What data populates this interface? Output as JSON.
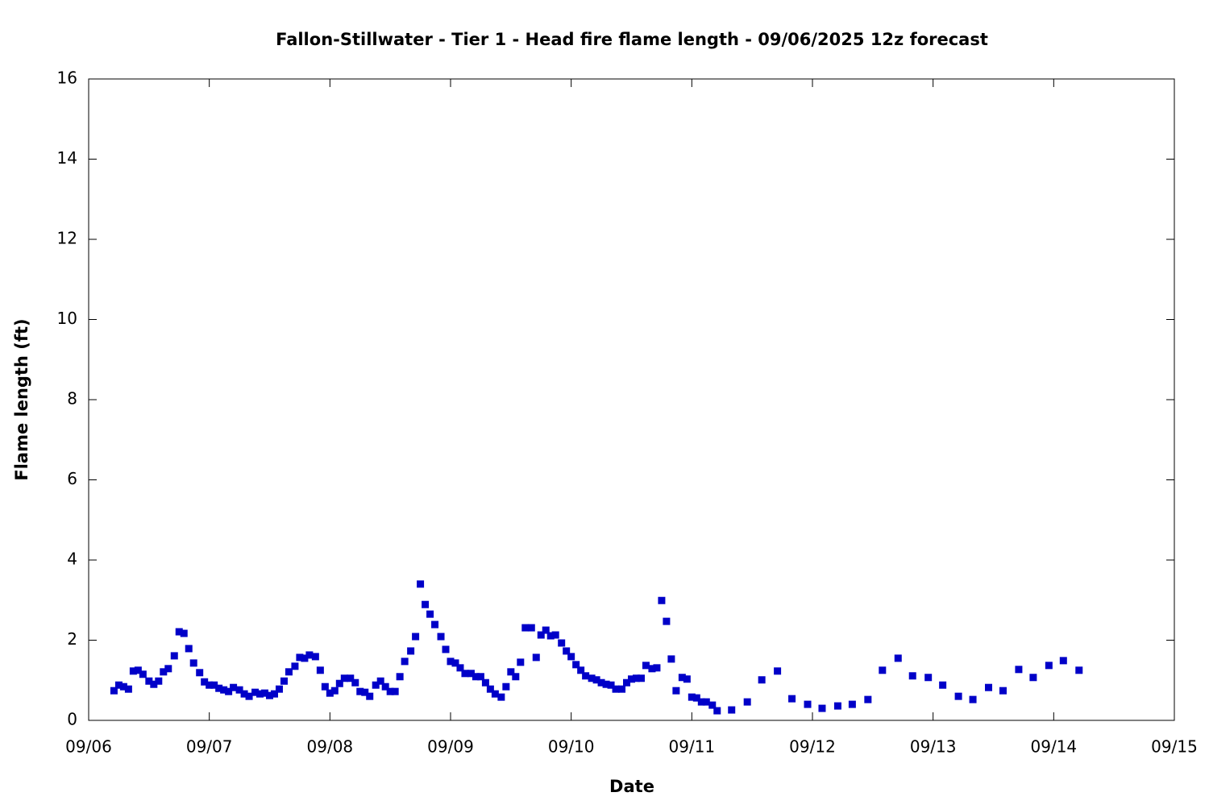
{
  "chart_data": {
    "type": "scatter",
    "title": "Fallon-Stillwater - Tier 1 - Head fire flame length - 09/06/2025 12z forecast",
    "x_label": "Date",
    "y_label": "Flame length (ft)",
    "color": "#0000c8",
    "xlim": [
      0,
      9
    ],
    "xticks": [
      {
        "value": 0,
        "label": "09/06"
      },
      {
        "value": 1,
        "label": "09/07"
      },
      {
        "value": 2,
        "label": "09/08"
      },
      {
        "value": 3,
        "label": "09/09"
      },
      {
        "value": 4,
        "label": "09/10"
      },
      {
        "value": 5,
        "label": "09/11"
      },
      {
        "value": 6,
        "label": "09/12"
      },
      {
        "value": 7,
        "label": "09/13"
      },
      {
        "value": 8,
        "label": "09/14"
      },
      {
        "value": 9,
        "label": "09/15"
      }
    ],
    "ylim": [
      0,
      16
    ],
    "yticks": [
      0,
      2,
      4,
      6,
      8,
      10,
      12,
      14,
      16
    ],
    "x": [
      0.21,
      0.25,
      0.29,
      0.33,
      0.37,
      0.41,
      0.45,
      0.5,
      0.54,
      0.58,
      0.62,
      0.66,
      0.71,
      0.75,
      0.79,
      0.83,
      0.87,
      0.92,
      0.96,
      1.0,
      1.04,
      1.08,
      1.12,
      1.16,
      1.2,
      1.25,
      1.29,
      1.33,
      1.38,
      1.42,
      1.46,
      1.5,
      1.54,
      1.58,
      1.62,
      1.66,
      1.71,
      1.75,
      1.79,
      1.83,
      1.88,
      1.92,
      1.96,
      2.0,
      2.04,
      2.08,
      2.12,
      2.17,
      2.21,
      2.25,
      2.29,
      2.33,
      2.38,
      2.42,
      2.46,
      2.5,
      2.54,
      2.58,
      2.62,
      2.67,
      2.71,
      2.75,
      2.79,
      2.83,
      2.87,
      2.92,
      2.96,
      3.0,
      3.04,
      3.08,
      3.12,
      3.17,
      3.21,
      3.25,
      3.29,
      3.33,
      3.37,
      3.42,
      3.46,
      3.5,
      3.54,
      3.58,
      3.62,
      3.67,
      3.71,
      3.75,
      3.79,
      3.83,
      3.87,
      3.92,
      3.96,
      4.0,
      4.04,
      4.08,
      4.12,
      4.17,
      4.21,
      4.25,
      4.29,
      4.33,
      4.37,
      4.42,
      4.46,
      4.5,
      4.54,
      4.58,
      4.62,
      4.67,
      4.71,
      4.75,
      4.79,
      4.83,
      4.87,
      4.92,
      4.96,
      5.0,
      5.04,
      5.08,
      5.12,
      5.17,
      5.21,
      5.33,
      5.46,
      5.58,
      5.71,
      5.83,
      5.96,
      6.08,
      6.21,
      6.33,
      6.46,
      6.58,
      6.71,
      6.83,
      6.96,
      7.08,
      7.21,
      7.33,
      7.46,
      7.58,
      7.71,
      7.83,
      7.96,
      8.08,
      8.21
    ],
    "y": [
      0.74,
      0.88,
      0.84,
      0.78,
      1.23,
      1.25,
      1.15,
      0.98,
      0.9,
      0.98,
      1.21,
      1.29,
      1.61,
      2.21,
      2.17,
      1.79,
      1.43,
      1.19,
      0.96,
      0.88,
      0.88,
      0.8,
      0.76,
      0.72,
      0.82,
      0.76,
      0.66,
      0.6,
      0.7,
      0.66,
      0.68,
      0.62,
      0.66,
      0.78,
      0.98,
      1.21,
      1.35,
      1.57,
      1.55,
      1.63,
      1.59,
      1.25,
      0.84,
      0.68,
      0.74,
      0.92,
      1.05,
      1.05,
      0.94,
      0.72,
      0.7,
      0.6,
      0.88,
      0.98,
      0.84,
      0.72,
      0.72,
      1.09,
      1.47,
      1.73,
      2.09,
      3.4,
      2.89,
      2.65,
      2.39,
      2.09,
      1.77,
      1.47,
      1.43,
      1.31,
      1.17,
      1.17,
      1.09,
      1.09,
      0.94,
      0.78,
      0.66,
      0.58,
      0.84,
      1.21,
      1.09,
      1.45,
      2.31,
      2.31,
      1.57,
      2.13,
      2.25,
      2.11,
      2.13,
      1.93,
      1.73,
      1.59,
      1.39,
      1.25,
      1.11,
      1.05,
      1.01,
      0.94,
      0.9,
      0.88,
      0.78,
      0.78,
      0.94,
      1.03,
      1.05,
      1.05,
      1.37,
      1.29,
      1.31,
      2.99,
      2.47,
      1.53,
      0.74,
      1.07,
      1.03,
      0.58,
      0.56,
      0.46,
      0.46,
      0.38,
      0.24,
      0.26,
      0.46,
      1.01,
      1.23,
      0.54,
      0.4,
      0.3,
      0.36,
      0.4,
      0.52,
      1.25,
      1.55,
      1.11,
      1.07,
      0.88,
      0.6,
      0.52,
      0.82,
      0.74,
      1.27,
      1.07,
      1.37,
      1.49,
      1.25
    ]
  }
}
